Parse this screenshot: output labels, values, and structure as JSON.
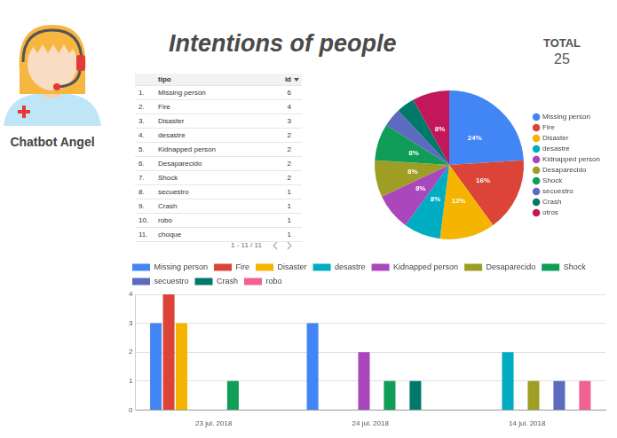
{
  "header": {
    "title": "Intentions of people",
    "bot_name": "Chatbot Angel",
    "total_label": "TOTAL",
    "total": 25
  },
  "table": {
    "columns": [
      "tipo",
      "id"
    ],
    "rows": [
      [
        "1.",
        "Missing person",
        6
      ],
      [
        "2.",
        "Fire",
        4
      ],
      [
        "3.",
        "Disaster",
        3
      ],
      [
        "4.",
        "desastre",
        2
      ],
      [
        "5.",
        "Kidnapped person",
        2
      ],
      [
        "6.",
        "Desaparecido",
        2
      ],
      [
        "7.",
        "Shock",
        2
      ],
      [
        "8.",
        "secuestro",
        1
      ],
      [
        "9.",
        "Crash",
        1
      ],
      [
        "10.",
        "robo",
        1
      ],
      [
        "11.",
        "choque",
        1
      ]
    ],
    "pagination": "1 - 11 / 11"
  },
  "chart_data": [
    {
      "type": "pie",
      "categories": [
        "Missing person",
        "Fire",
        "Disaster",
        "desastre",
        "Kidnapped person",
        "Desaparecido",
        "Shock",
        "secuestro",
        "Crash",
        "otros"
      ],
      "values": [
        24,
        16,
        12,
        8,
        8,
        8,
        8,
        4,
        4,
        8
      ],
      "value_labels": [
        "24%",
        "16%",
        "12%",
        "8%",
        "8%",
        "8%",
        "8%",
        null,
        null,
        "8%"
      ],
      "colors": [
        "#4285f4",
        "#db4437",
        "#f4b400",
        "#00acc1",
        "#ab47bc",
        "#9e9d24",
        "#0f9d58",
        "#5c6bc0",
        "#00796b",
        "#c2185b"
      ],
      "data_labels": true,
      "legend": "right"
    },
    {
      "type": "bar",
      "categories": [
        "23 jul. 2018",
        "24 jul. 2018",
        "14 jul. 2018"
      ],
      "series": [
        {
          "name": "Missing person",
          "color": "#4285f4",
          "values": [
            3,
            3,
            null
          ]
        },
        {
          "name": "Fire",
          "color": "#db4437",
          "values": [
            4,
            null,
            null
          ]
        },
        {
          "name": "Disaster",
          "color": "#f4b400",
          "values": [
            3,
            null,
            null
          ]
        },
        {
          "name": "desastre",
          "color": "#00acc1",
          "values": [
            null,
            null,
            2
          ]
        },
        {
          "name": "Kidnapped person",
          "color": "#ab47bc",
          "values": [
            null,
            2,
            null
          ]
        },
        {
          "name": "Desaparecido",
          "color": "#9e9d24",
          "values": [
            null,
            null,
            1
          ]
        },
        {
          "name": "Shock",
          "color": "#0f9d58",
          "values": [
            1,
            1,
            null
          ]
        },
        {
          "name": "secuestro",
          "color": "#5c6bc0",
          "values": [
            null,
            null,
            1
          ]
        },
        {
          "name": "Crash",
          "color": "#00796b",
          "values": [
            null,
            1,
            null
          ]
        },
        {
          "name": "robo",
          "color": "#f06292",
          "values": [
            null,
            null,
            1
          ]
        }
      ],
      "ylim": [
        0,
        4
      ],
      "yticks": [
        0,
        1,
        2,
        3,
        4
      ],
      "grid": true,
      "legend": "top"
    }
  ]
}
